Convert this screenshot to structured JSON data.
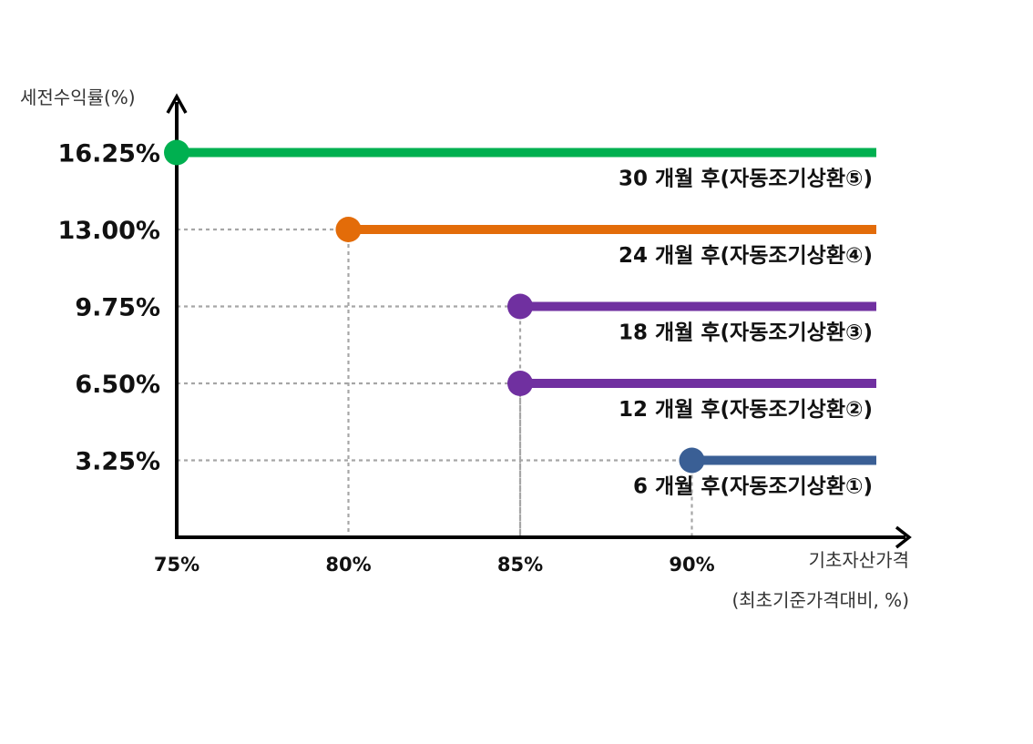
{
  "chart_data": {
    "type": "line",
    "ylabel": "세전수익률(%)",
    "xlabel_line1": "기초자산가격",
    "xlabel_line2": "(최초기준가격대비, %)",
    "x_ticks": [
      "75%",
      "80%",
      "85%",
      "90%"
    ],
    "x_tick_values": [
      75,
      80,
      85,
      90
    ],
    "y_ticks": [
      "16.25%",
      "13.00%",
      "9.75%",
      "6.50%",
      "3.25%"
    ],
    "y_tick_values": [
      16.25,
      13.0,
      9.75,
      6.5,
      3.25
    ],
    "xlim": [
      75,
      95
    ],
    "ylim": [
      0,
      16.25
    ],
    "grid": "dotted guides",
    "series": [
      {
        "name": "30 개월 후(자동조기상환⑤)",
        "x_start": 75,
        "y": 16.25,
        "color": "#00b050"
      },
      {
        "name": "24 개월 후(자동조기상환④)",
        "x_start": 80,
        "y": 13.0,
        "color": "#e36c09"
      },
      {
        "name": "18 개월 후(자동조기상환③)",
        "x_start": 85,
        "y": 9.75,
        "color": "#7030a0"
      },
      {
        "name": "12 개월 후(자동조기상환②)",
        "x_start": 85,
        "y": 6.5,
        "color": "#7030a0"
      },
      {
        "name": "6 개월 후(자동조기상환①)",
        "x_start": 90,
        "y": 3.25,
        "color": "#3a5f95"
      }
    ]
  }
}
